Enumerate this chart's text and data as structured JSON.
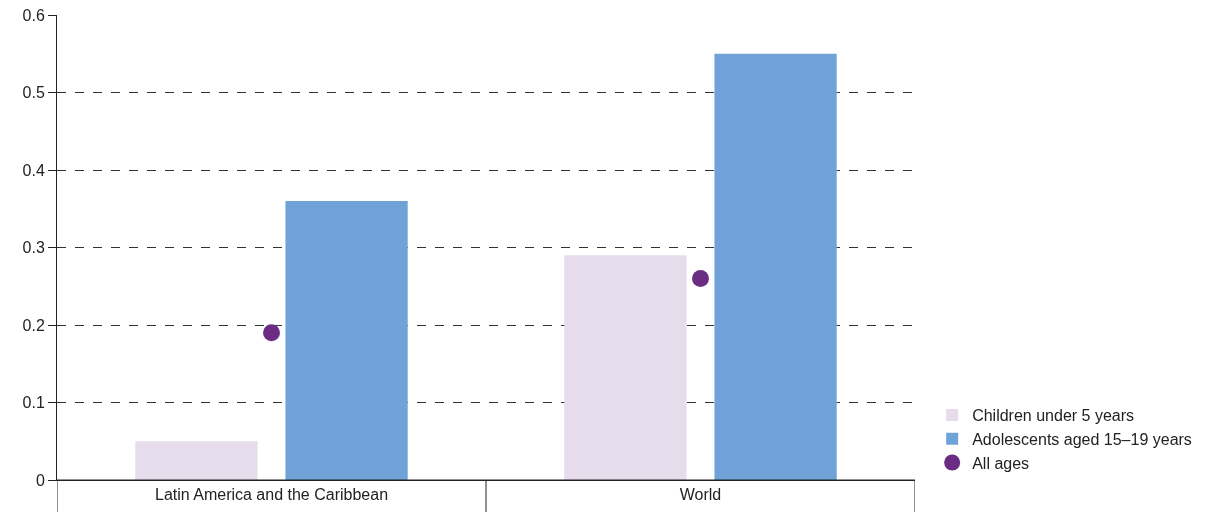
{
  "chart_data": {
    "type": "bar",
    "categories": [
      "Latin America and the Caribbean",
      "World"
    ],
    "series": [
      {
        "name": "Children under 5 years",
        "color": "#e6dcec",
        "values": [
          0.05,
          0.29
        ]
      },
      {
        "name": "Adolescents aged 15–19 years",
        "color": "#6fa3d8",
        "values": [
          0.36,
          0.55
        ]
      },
      {
        "name": "All ages",
        "type": "scatter",
        "color": "#6b2d84",
        "values": [
          0.19,
          0.26
        ]
      }
    ],
    "ylim": [
      0,
      0.6
    ],
    "yticks": [
      0,
      0.1,
      0.2,
      0.3,
      0.4,
      0.5,
      0.6
    ],
    "grid": "y",
    "legend": "bottom right",
    "marker": "circle"
  }
}
